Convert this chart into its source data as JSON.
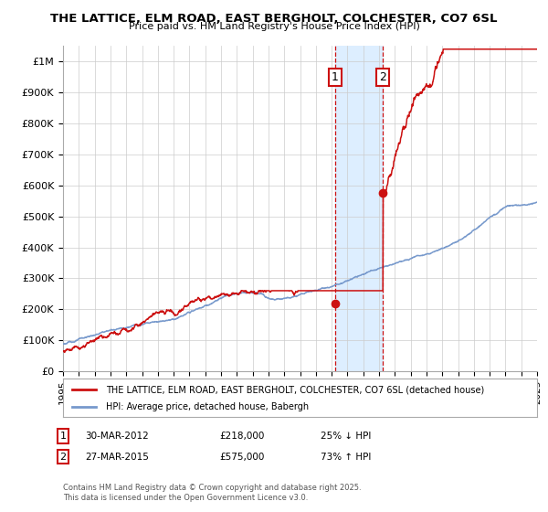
{
  "title": "THE LATTICE, ELM ROAD, EAST BERGHOLT, COLCHESTER, CO7 6SL",
  "subtitle": "Price paid vs. HM Land Registry's House Price Index (HPI)",
  "x_start_year": 1995,
  "x_end_year": 2025,
  "ylim": [
    0,
    1050000
  ],
  "yticks": [
    0,
    100000,
    200000,
    300000,
    400000,
    500000,
    600000,
    700000,
    800000,
    900000,
    1000000
  ],
  "ytick_labels": [
    "£0",
    "£100K",
    "£200K",
    "£300K",
    "£400K",
    "£500K",
    "£600K",
    "£700K",
    "£800K",
    "£900K",
    "£1M"
  ],
  "transaction1": {
    "date_year": 2012.23,
    "price": 218000,
    "label": "1",
    "pct": "25% ↓ HPI",
    "date_str": "30-MAR-2012"
  },
  "transaction2": {
    "date_year": 2015.23,
    "price": 575000,
    "label": "2",
    "pct": "73% ↑ HPI",
    "date_str": "27-MAR-2015"
  },
  "hpi_color": "#7799cc",
  "price_color": "#cc1111",
  "bg_color": "#ffffff",
  "highlight_color": "#ddeeff",
  "legend_label1": "THE LATTICE, ELM ROAD, EAST BERGHOLT, COLCHESTER, CO7 6SL (detached house)",
  "legend_label2": "HPI: Average price, detached house, Babergh",
  "footer1": "Contains HM Land Registry data © Crown copyright and database right 2025.",
  "footer2": "This data is licensed under the Open Government Licence v3.0."
}
